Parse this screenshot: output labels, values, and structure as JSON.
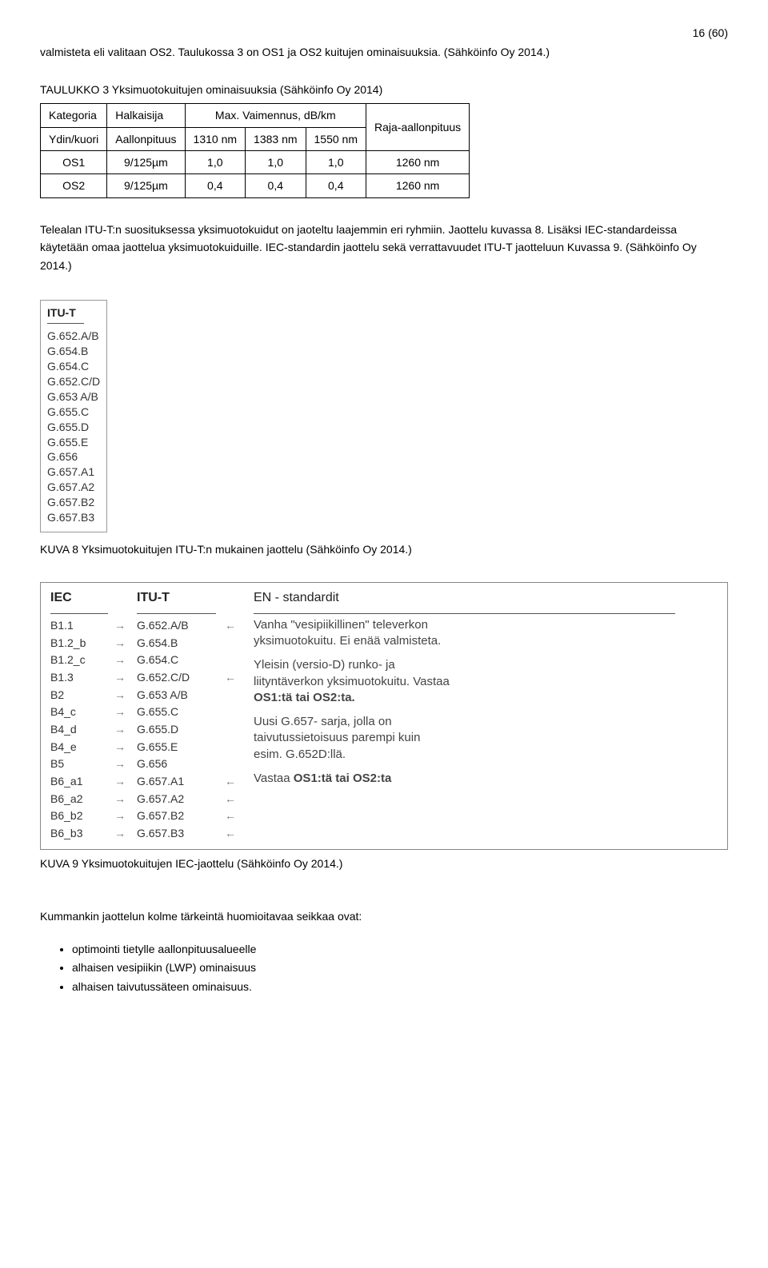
{
  "page_number": "16 (60)",
  "intro_para": "valmisteta eli valitaan OS2. Taulukossa 3 on OS1 ja OS2 kuitujen ominaisuuksia. (Sähköinfo Oy 2014.)",
  "table3_caption": "TAULUKKO 3 Yksimuotokuitujen ominaisuuksia (Sähköinfo Oy 2014)",
  "table3": {
    "headers_row1": [
      "Kategoria",
      "Halkaisija",
      "",
      "",
      "Max. Vaimennus, dB/km",
      "Raja-aallonpituus"
    ],
    "headers_row2": [
      "",
      "Ydin/kuori",
      "Aallonpituus",
      "1310 nm",
      "1383 nm",
      "1550 nm",
      ""
    ],
    "rows": [
      [
        "OS1",
        "9/125µm",
        "",
        "1,0",
        "1,0",
        "1,0",
        "1260 nm"
      ],
      [
        "OS2",
        "9/125µm",
        "",
        "0,4",
        "0,4",
        "0,4",
        "1260 nm"
      ]
    ]
  },
  "para2": "Telealan ITU-T:n suosituksessa yksimuotokuidut on jaoteltu laajemmin eri ryhmiin. Jaottelu kuvassa 8. Lisäksi IEC-standardeissa käytetään omaa jaottelua yksimuotokuiduille. IEC-standardin jaottelu sekä verrattavuudet ITU-T jaotteluun Kuvassa 9. (Sähköinfo Oy 2014.)",
  "itu_box": {
    "header": "ITU-T",
    "items": [
      "G.652.A/B",
      "G.654.B",
      "G.654.C",
      "G.652.C/D",
      "G.653 A/B",
      "G.655.C",
      "G.655.D",
      "G.655.E",
      "G.656",
      "G.657.A1",
      "G.657.A2",
      "G.657.B2",
      "G.657.B3"
    ]
  },
  "caption8": "KUVA 8 Yksimuotokuitujen ITU-T:n mukainen jaottelu (Sähköinfo Oy 2014.)",
  "cmp": {
    "iec_header": "IEC",
    "itut_header": "ITU-T",
    "en_header": "EN - standardit",
    "rows": [
      {
        "iec": "B1.1",
        "itut": "G.652.A/B",
        "arrow_l": true,
        "note_idx": 0
      },
      {
        "iec": "B1.2_b",
        "itut": "G.654.B",
        "arrow_l": false,
        "note_idx": null
      },
      {
        "iec": "B1.2_c",
        "itut": "G.654.C",
        "arrow_l": false,
        "note_idx": null
      },
      {
        "iec": "B1.3",
        "itut": "G.652.C/D",
        "arrow_l": true,
        "note_idx": 1
      },
      {
        "iec": "B2",
        "itut": "G.653 A/B",
        "arrow_l": false,
        "note_idx": null
      },
      {
        "iec": "B4_c",
        "itut": "G.655.C",
        "arrow_l": false,
        "note_idx": null
      },
      {
        "iec": "B4_d",
        "itut": "G.655.D",
        "arrow_l": false,
        "note_idx": null
      },
      {
        "iec": "B4_e",
        "itut": "G.655.E",
        "arrow_l": false,
        "note_idx": null
      },
      {
        "iec": "B5",
        "itut": "G.656",
        "arrow_l": false,
        "note_idx": null
      },
      {
        "iec": "B6_a1",
        "itut": "G.657.A1",
        "arrow_l": true,
        "note_idx": 2
      },
      {
        "iec": "B6_a2",
        "itut": "G.657.A2",
        "arrow_l": true,
        "note_idx": null
      },
      {
        "iec": "B6_b2",
        "itut": "G.657.B2",
        "arrow_l": true,
        "note_idx": null
      },
      {
        "iec": "B6_b3",
        "itut": "G.657.B3",
        "arrow_l": true,
        "note_idx": 3
      }
    ],
    "notes": [
      {
        "lines": [
          "Vanha \"vesipiikillinen\" televerkon",
          "yksimuotokuitu. Ei enää valmisteta."
        ]
      },
      {
        "lines": [
          "Yleisin (versio-D) runko- ja",
          "liityntäverkon yksimuotokuitu. Vastaa"
        ],
        "bold_tail": "OS1:tä tai OS2:ta."
      },
      {
        "lines": [
          "Uusi G.657- sarja, jolla on",
          "taivutussietoisuus parempi kuin",
          "esim. G.652D:llä."
        ]
      },
      {
        "lines": [
          "Vastaa "
        ],
        "bold_tail": "OS1:tä tai OS2:ta"
      }
    ]
  },
  "caption9": "KUVA 9 Yksimuotokuitujen IEC-jaottelu (Sähköinfo Oy 2014.)",
  "para3": "Kummankin jaottelun kolme tärkeintä huomioitavaa seikkaa ovat:",
  "bullets": [
    "optimointi tietylle aallonpituusalueelle",
    "alhaisen vesipiikin (LWP) ominaisuus",
    "alhaisen taivutussäteen ominaisuus."
  ]
}
